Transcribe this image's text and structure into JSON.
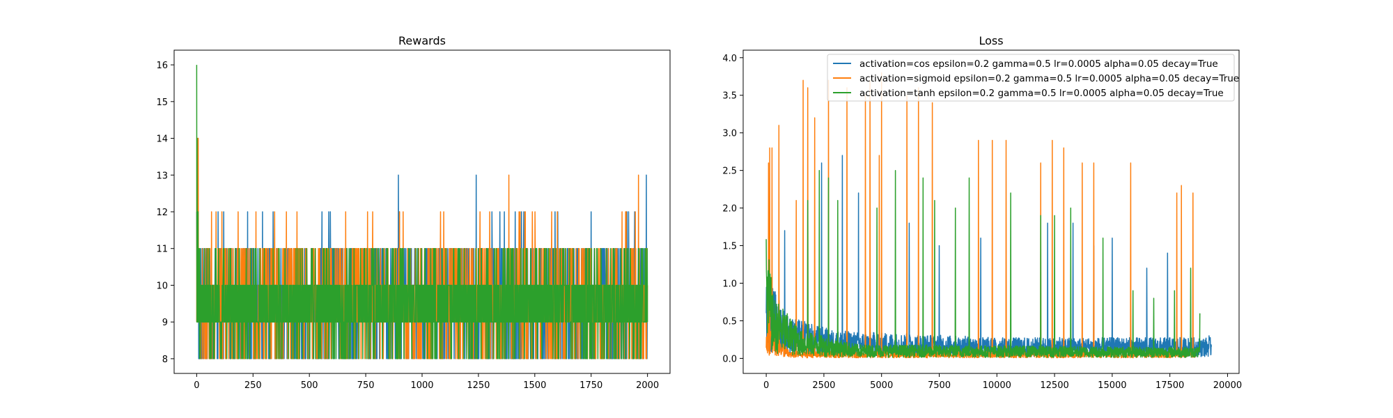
{
  "colors": {
    "cos": "#1f77b4",
    "sigmoid": "#ff7f0e",
    "tanh": "#2ca02c"
  },
  "chart_data": [
    {
      "type": "line",
      "title": "Rewards",
      "xlabel": "",
      "ylabel": "",
      "xlim": [
        -100,
        2100
      ],
      "ylim": [
        7.6,
        16.4
      ],
      "xticks": [
        0,
        250,
        500,
        750,
        1000,
        1250,
        1500,
        1750,
        2000
      ],
      "yticks": [
        8,
        9,
        10,
        11,
        12,
        13,
        14,
        15,
        16
      ],
      "grid": false,
      "legend": "none",
      "summary": {
        "x_range": [
          0,
          2000
        ],
        "base_values": [
          8,
          9,
          10,
          11
        ],
        "spike_values": [
          12,
          13
        ]
      },
      "series": [
        {
          "color": "#1f77b4",
          "points": [
            [
              0,
              12
            ],
            [
              895,
              13
            ],
            [
              1240,
              13
            ],
            [
              1995,
              13
            ]
          ]
        },
        {
          "color": "#ff7f0e",
          "points": [
            [
              1,
              14
            ],
            [
              3,
              14
            ],
            [
              5,
              13
            ],
            [
              7,
              14
            ],
            [
              1385,
              13
            ],
            [
              1960,
              13
            ]
          ]
        },
        {
          "color": "#2ca02c",
          "points": [
            [
              0,
              16
            ],
            [
              2,
              14
            ],
            [
              4,
              12
            ],
            [
              6,
              12
            ]
          ]
        }
      ]
    },
    {
      "type": "line",
      "title": "Loss",
      "xlabel": "",
      "ylabel": "",
      "xlim": [
        -1000,
        20500
      ],
      "ylim": [
        -0.2,
        4.1
      ],
      "xticks": [
        0,
        2500,
        5000,
        7500,
        10000,
        12500,
        15000,
        17500,
        20000
      ],
      "yticks": [
        0.0,
        0.5,
        1.0,
        1.5,
        2.0,
        2.5,
        3.0,
        3.5,
        4.0
      ],
      "grid": false,
      "legend": "top-right",
      "series": [
        {
          "name": "activation=cos epsilon=0.2 gamma=0.5 lr=0.0005 alpha=0.05 decay=True",
          "color": "#1f77b4",
          "x_end": 19300,
          "baseline": [
            [
              0,
              0.6
            ],
            [
              1000,
              0.3
            ],
            [
              3000,
              0.2
            ],
            [
              10000,
              0.15
            ],
            [
              19300,
              0.15
            ]
          ],
          "spikes": [
            [
              800,
              1.7
            ],
            [
              2400,
              2.6
            ],
            [
              3300,
              2.7
            ],
            [
              4000,
              2.2
            ],
            [
              6200,
              1.8
            ],
            [
              7500,
              1.5
            ],
            [
              9300,
              1.6
            ],
            [
              12200,
              1.8
            ],
            [
              13300,
              1.8
            ],
            [
              14200,
              1.5
            ],
            [
              15000,
              1.6
            ],
            [
              16500,
              1.2
            ],
            [
              17400,
              1.4
            ],
            [
              19200,
              0.3
            ]
          ]
        },
        {
          "name": "activation=sigmoid epsilon=0.2 gamma=0.5 lr=0.0005 alpha=0.05 decay=True",
          "color": "#ff7f0e",
          "x_end": 18600,
          "baseline": [
            [
              0,
              0.3
            ],
            [
              1000,
              0.05
            ],
            [
              18600,
              0.05
            ]
          ],
          "spikes": [
            [
              100,
              2.6
            ],
            [
              150,
              2.8
            ],
            [
              250,
              2.8
            ],
            [
              550,
              3.1
            ],
            [
              1300,
              2.1
            ],
            [
              1600,
              3.7
            ],
            [
              1800,
              3.6
            ],
            [
              2100,
              3.2
            ],
            [
              2700,
              3.7
            ],
            [
              3500,
              3.6
            ],
            [
              4300,
              3.5
            ],
            [
              4500,
              3.7
            ],
            [
              4900,
              2.7
            ],
            [
              5000,
              3.8
            ],
            [
              6100,
              3.5
            ],
            [
              6600,
              3.6
            ],
            [
              7200,
              3.4
            ],
            [
              9200,
              2.9
            ],
            [
              9800,
              2.9
            ],
            [
              10400,
              2.9
            ],
            [
              11900,
              2.6
            ],
            [
              12400,
              2.9
            ],
            [
              12900,
              2.8
            ],
            [
              13700,
              2.6
            ],
            [
              14200,
              2.6
            ],
            [
              15800,
              2.6
            ],
            [
              17800,
              2.2
            ],
            [
              18000,
              2.3
            ],
            [
              18500,
              2.2
            ]
          ]
        },
        {
          "name": "activation=tanh epsilon=0.2 gamma=0.5 lr=0.0005 alpha=0.05 decay=True",
          "color": "#2ca02c",
          "x_end": 18800,
          "baseline": [
            [
              0,
              0.9
            ],
            [
              300,
              0.45
            ],
            [
              1500,
              0.2
            ],
            [
              4000,
              0.1
            ],
            [
              18800,
              0.08
            ]
          ],
          "spikes": [
            [
              100,
              1.0
            ],
            [
              1800,
              2.1
            ],
            [
              2300,
              2.5
            ],
            [
              2700,
              2.4
            ],
            [
              3100,
              2.1
            ],
            [
              4800,
              2.0
            ],
            [
              5600,
              2.5
            ],
            [
              6800,
              2.4
            ],
            [
              7300,
              2.1
            ],
            [
              8200,
              2.0
            ],
            [
              8800,
              2.4
            ],
            [
              10600,
              2.2
            ],
            [
              11900,
              1.9
            ],
            [
              12500,
              1.9
            ],
            [
              13200,
              2.0
            ],
            [
              14600,
              1.6
            ],
            [
              15900,
              0.9
            ],
            [
              16800,
              0.8
            ],
            [
              17700,
              0.9
            ],
            [
              18400,
              1.2
            ],
            [
              18800,
              0.6
            ]
          ]
        }
      ]
    }
  ]
}
